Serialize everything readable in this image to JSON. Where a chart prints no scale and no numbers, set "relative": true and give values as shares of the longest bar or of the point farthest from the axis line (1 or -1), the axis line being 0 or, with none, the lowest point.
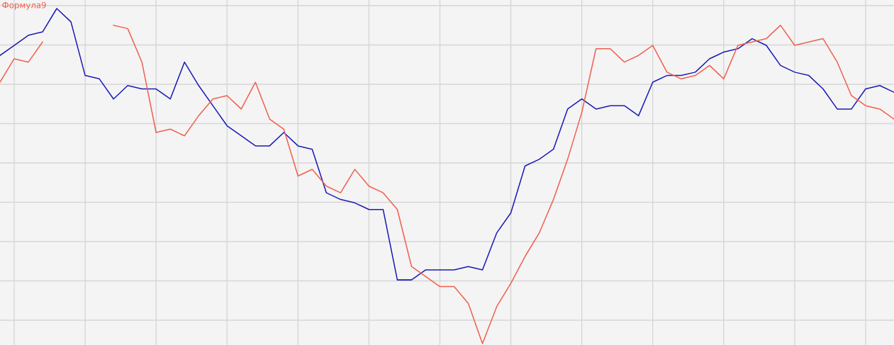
{
  "chart_data": {
    "type": "line",
    "relative": true,
    "grid": true,
    "legend": "top left",
    "categories": [
      null,
      null,
      null,
      null,
      null,
      null,
      null,
      null,
      null,
      null,
      null,
      null,
      null,
      null,
      null,
      null,
      null,
      null,
      null,
      null,
      null,
      null,
      null,
      null,
      null,
      null,
      null,
      null,
      null,
      null,
      null,
      null,
      null,
      null,
      null,
      null,
      null,
      null,
      null,
      null,
      null,
      null,
      null,
      null,
      null,
      null,
      null,
      null,
      null,
      null,
      null,
      null,
      null,
      null,
      null,
      null,
      null,
      null,
      null,
      null,
      null,
      null,
      null,
      null
    ],
    "series": [
      {
        "color": "#1a1ab8",
        "values": [
          0.86,
          0.89,
          0.92,
          0.93,
          1.0,
          0.96,
          0.8,
          0.79,
          0.73,
          0.77,
          0.76,
          0.76,
          0.73,
          0.84,
          0.77,
          0.71,
          0.65,
          0.62,
          0.59,
          0.59,
          0.63,
          0.59,
          0.58,
          0.45,
          0.43,
          0.42,
          0.4,
          0.4,
          0.19,
          0.19,
          0.22,
          0.22,
          0.22,
          0.23,
          0.22,
          0.33,
          0.39,
          0.53,
          0.55,
          0.58,
          0.7,
          0.73,
          0.7,
          0.71,
          0.71,
          0.68,
          0.78,
          0.8,
          0.8,
          0.81,
          0.85,
          0.87,
          0.88,
          0.91,
          0.89,
          0.83,
          0.81,
          0.8,
          0.76,
          0.7,
          0.7,
          0.76,
          0.77,
          0.75
        ]
      },
      {
        "name": "Формула9",
        "color": "#f0604f",
        "values": [
          0.78,
          0.85,
          0.84,
          0.9,
          null,
          null,
          null,
          null,
          0.95,
          0.94,
          0.84,
          0.63,
          0.64,
          0.62,
          0.68,
          0.73,
          0.74,
          0.7,
          0.78,
          0.67,
          0.64,
          0.5,
          0.52,
          0.47,
          0.45,
          0.52,
          0.47,
          0.45,
          0.4,
          0.23,
          0.2,
          0.17,
          0.17,
          0.12,
          0.0,
          0.11,
          0.18,
          0.26,
          0.33,
          0.43,
          0.55,
          0.69,
          0.88,
          0.88,
          0.84,
          0.86,
          0.89,
          0.81,
          0.79,
          0.8,
          0.83,
          0.79,
          0.89,
          0.9,
          0.91,
          0.95,
          0.89,
          0.9,
          0.91,
          0.84,
          0.74,
          0.71,
          0.7,
          0.67
        ]
      }
    ]
  }
}
